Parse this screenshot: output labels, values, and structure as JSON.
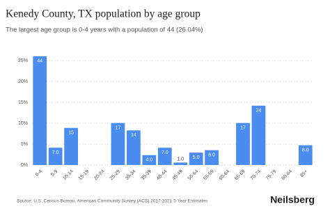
{
  "chart_data": {
    "type": "bar",
    "title": "Kenedy County, TX population by age group",
    "subtitle": "The largest age group is 0-4 years with a population of 44 (26.04%)",
    "categories": [
      "0-4",
      "5-9",
      "10-14",
      "15-19",
      "20-24",
      "25-29",
      "30-34",
      "35-39",
      "40-44",
      "45-49",
      "50-54",
      "55-59",
      "60-64",
      "65-69",
      "70-74",
      "75-79",
      "80-84",
      "85+"
    ],
    "values": [
      26.04,
      4.14,
      8.88,
      0,
      0,
      10.06,
      8.28,
      2.37,
      4.14,
      0.59,
      2.96,
      3.55,
      0,
      10.06,
      14.2,
      0,
      0,
      4.73
    ],
    "population_labels": [
      "44",
      "7.0",
      "15",
      null,
      null,
      "17",
      "14",
      "4.0",
      "7.0",
      "1.0",
      "5.0",
      "6.0",
      null,
      "17",
      "24",
      null,
      null,
      "8.0"
    ],
    "color": "#4a8cf0",
    "ylim": [
      0,
      26.5
    ],
    "yticks": [
      {
        "value": 0,
        "label": "0%"
      },
      {
        "value": 5,
        "label": "5%"
      },
      {
        "value": 10,
        "label": "10%"
      },
      {
        "value": 15,
        "label": "15%"
      },
      {
        "value": 20,
        "label": "20%"
      },
      {
        "value": 25,
        "label": "25%"
      }
    ],
    "grid": true,
    "source": "Source: U.S. Census Bureau, American Community Survey (ACS) 2017-2021 5-Year Estimates",
    "brand": "Neilsberg"
  }
}
